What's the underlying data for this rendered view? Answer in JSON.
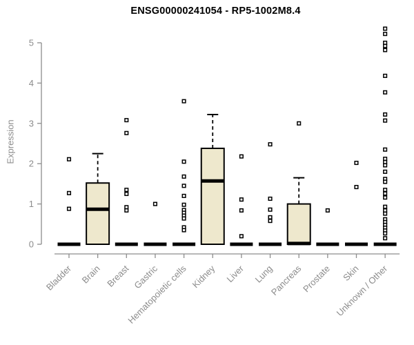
{
  "chart_data": {
    "type": "boxplot",
    "title": "ENSG00000241054 - RP5-1002M8.4",
    "ylabel": "Expression",
    "xlabel": "",
    "ylim": [
      0,
      5.5
    ],
    "yticks": [
      0,
      1,
      2,
      3,
      4,
      5
    ],
    "grid": false,
    "legend": false,
    "categories": [
      "Bladder",
      "Brain",
      "Breast",
      "Gastric",
      "Hematopoietic cells",
      "Kidney",
      "Liver",
      "Lung",
      "Pancreas",
      "Prostate",
      "Skin",
      "Unknown / Other"
    ],
    "boxes": [
      {
        "category": "Bladder",
        "q1": 0,
        "median": 0,
        "q3": 0,
        "whisker_low": 0,
        "whisker_high": 0,
        "outliers": [
          2.11,
          1.27,
          0.88
        ]
      },
      {
        "category": "Brain",
        "q1": 0,
        "median": 0.87,
        "q3": 1.52,
        "whisker_low": 0,
        "whisker_high": 2.25,
        "outliers": []
      },
      {
        "category": "Breast",
        "q1": 0,
        "median": 0,
        "q3": 0,
        "whisker_low": 0,
        "whisker_high": 0,
        "outliers": [
          3.08,
          2.76,
          1.35,
          1.25,
          0.92,
          0.84
        ]
      },
      {
        "category": "Gastric",
        "q1": 0,
        "median": 0,
        "q3": 0,
        "whisker_low": 0,
        "whisker_high": 0,
        "outliers": [
          1.0
        ]
      },
      {
        "category": "Hematopoietic cells",
        "q1": 0,
        "median": 0,
        "q3": 0,
        "whisker_low": 0,
        "whisker_high": 0,
        "outliers": [
          3.55,
          2.05,
          1.68,
          1.45,
          1.2,
          0.98,
          0.85,
          0.78,
          0.71,
          0.64,
          0.42,
          0.35
        ]
      },
      {
        "category": "Kidney",
        "q1": 0,
        "median": 1.57,
        "q3": 2.38,
        "whisker_low": 0,
        "whisker_high": 3.22,
        "outliers": []
      },
      {
        "category": "Liver",
        "q1": 0,
        "median": 0,
        "q3": 0,
        "whisker_low": 0,
        "whisker_high": 0,
        "outliers": [
          2.18,
          1.11,
          0.84,
          0.2
        ]
      },
      {
        "category": "Lung",
        "q1": 0,
        "median": 0,
        "q3": 0,
        "whisker_low": 0,
        "whisker_high": 0,
        "outliers": [
          2.48,
          1.13,
          0.86,
          0.67,
          0.58
        ]
      },
      {
        "category": "Pancreas",
        "q1": 0,
        "median": 0.02,
        "q3": 1.0,
        "whisker_low": 0,
        "whisker_high": 1.65,
        "outliers": [
          3.0
        ]
      },
      {
        "category": "Prostate",
        "q1": 0,
        "median": 0,
        "q3": 0,
        "whisker_low": 0,
        "whisker_high": 0,
        "outliers": [
          0.84
        ]
      },
      {
        "category": "Skin",
        "q1": 0,
        "median": 0,
        "q3": 0,
        "whisker_low": 0,
        "whisker_high": 0,
        "outliers": [
          2.02,
          1.42
        ]
      },
      {
        "category": "Unknown / Other",
        "q1": 0,
        "median": 0,
        "q3": 0,
        "whisker_low": 0,
        "whisker_high": 0,
        "outliers": [
          5.35,
          5.22,
          5.0,
          4.92,
          4.82,
          4.18,
          3.77,
          3.22,
          3.07,
          2.35,
          2.12,
          2.04,
          1.96,
          1.8,
          1.62,
          1.55,
          1.35,
          1.26,
          1.16,
          0.93,
          0.84,
          0.76,
          0.62,
          0.55,
          0.48,
          0.41,
          0.34,
          0.27,
          0.15
        ]
      }
    ],
    "colors": {
      "box_fill": "#EEE8CD",
      "box_border": "#000000",
      "median": "#000000",
      "outlier": "#000000",
      "axis": "#8C8C8C",
      "tick_text": "#8C8C8C",
      "title_text": "#000000"
    }
  }
}
